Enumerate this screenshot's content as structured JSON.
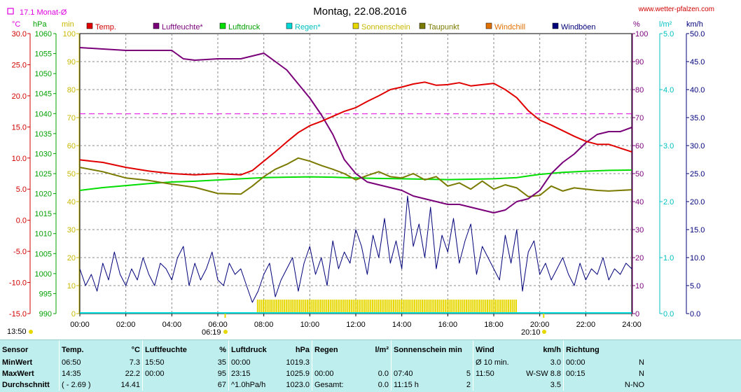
{
  "title": "Montag, 22.08.2016",
  "website": "www.wetter-pfalzen.com",
  "month_avg_label": "17.1 Monat-Ø",
  "colors": {
    "temp": "#e00000",
    "humidity": "#7a007a",
    "pressure": "#00dd00",
    "rain": "#00d8d8",
    "sunshine": "#e6d800",
    "dewpoint": "#7a7a00",
    "windchill": "#e07000",
    "gusts": "#00007a",
    "month_avg": "#e000e0"
  },
  "axis_units": {
    "temp": "°C",
    "pressure": "hPa",
    "sunshine": "min",
    "humidity": "%",
    "rain": "l/m²",
    "wind": "km/h"
  },
  "sun_events": {
    "moonrise_label": "13:50",
    "sunrise_label": "06:19",
    "sunset_label": "20:10"
  },
  "chart_data": {
    "type": "line",
    "title": "Montag, 22.08.2016",
    "x_label": "",
    "x_ticks": [
      "00:00",
      "02:00",
      "04:00",
      "06:00",
      "08:00",
      "10:00",
      "12:00",
      "14:00",
      "16:00",
      "18:00",
      "20:00",
      "22:00",
      "24:00"
    ],
    "x_range": [
      0,
      24
    ],
    "axes": {
      "temp": {
        "range": [
          -15,
          30
        ],
        "ticks": [
          "30.0",
          "25.0",
          "20.0",
          "15.0",
          "10.0",
          "5.0",
          "0.0",
          "-5.0",
          "-10.0",
          "-15.0"
        ]
      },
      "pressure": {
        "range": [
          990,
          1060
        ],
        "ticks": [
          "1060",
          "1055",
          "1050",
          "1045",
          "1040",
          "1035",
          "1030",
          "1025",
          "1020",
          "1015",
          "1010",
          "1005",
          "1000",
          "995",
          "990"
        ]
      },
      "sunshine": {
        "range": [
          0,
          100
        ],
        "ticks": [
          "100",
          "90",
          "80",
          "70",
          "60",
          "50",
          "40",
          "30",
          "20",
          "10",
          "0"
        ]
      },
      "humidity": {
        "range": [
          0,
          100
        ],
        "ticks": [
          "100",
          "90",
          "80",
          "70",
          "60",
          "50",
          "40",
          "30",
          "20",
          "10",
          "0"
        ]
      },
      "rain": {
        "range": [
          0,
          5
        ],
        "ticks": [
          "5.0",
          "4.0",
          "3.0",
          "2.0",
          "1.0",
          "0.0"
        ]
      },
      "wind": {
        "range": [
          0,
          50
        ],
        "ticks": [
          "50.0",
          "45.0",
          "40.0",
          "35.0",
          "30.0",
          "25.0",
          "20.0",
          "15.0",
          "10.0",
          "5.0",
          "0.0"
        ]
      }
    },
    "legend": [
      "Temp.",
      "Luftfeuchte*",
      "Luftdruck",
      "Regen*",
      "Sonnenschein",
      "Taupunkt",
      "Windchill",
      "Windböen"
    ],
    "month_avg_temp": 17.1,
    "series": [
      {
        "name": "Temp.",
        "axis": "temp",
        "x": [
          0,
          1,
          2,
          3,
          4,
          5,
          6,
          6.5,
          7,
          7.5,
          8,
          8.5,
          9,
          9.5,
          10,
          10.5,
          11,
          11.5,
          12,
          12.5,
          13,
          13.5,
          14,
          14.5,
          15,
          15.5,
          16,
          16.5,
          17,
          17.5,
          18,
          18.5,
          19,
          19.5,
          20,
          20.5,
          21,
          21.5,
          22,
          22.5,
          23,
          23.5,
          24
        ],
        "y": [
          9.7,
          9.3,
          8.5,
          7.9,
          7.5,
          7.3,
          7.5,
          7.4,
          7.3,
          8.0,
          9.5,
          11.0,
          12.6,
          14.1,
          15.2,
          15.9,
          16.7,
          17.5,
          18.1,
          19.1,
          20.0,
          21.0,
          21.4,
          21.9,
          22.2,
          21.7,
          21.8,
          22.1,
          21.6,
          21.8,
          22.0,
          21.0,
          19.7,
          17.6,
          16.1,
          15.3,
          14.4,
          13.5,
          12.7,
          12.2,
          12.2,
          11.6,
          11.0
        ]
      },
      {
        "name": "Taupunkt",
        "axis": "temp",
        "x": [
          0,
          1,
          2,
          3,
          4,
          5,
          6,
          7,
          7.5,
          8,
          8.5,
          9,
          9.5,
          10,
          10.5,
          11,
          11.5,
          12,
          12.5,
          13,
          13.5,
          14,
          14.5,
          15,
          15.5,
          16,
          16.5,
          17,
          17.5,
          18,
          18.5,
          19,
          19.5,
          20,
          20.5,
          21,
          21.5,
          22,
          22.5,
          23,
          23.5,
          24
        ],
        "y": [
          8.5,
          7.8,
          6.8,
          6.4,
          5.8,
          5.3,
          4.3,
          4.2,
          5.5,
          7.0,
          8.2,
          9.0,
          10.0,
          9.5,
          8.8,
          8.2,
          7.5,
          6.5,
          7.2,
          7.8,
          7.0,
          6.8,
          7.5,
          6.5,
          7.0,
          5.5,
          6.0,
          5.0,
          6.3,
          5.0,
          5.7,
          5.2,
          3.8,
          4.0,
          5.5,
          4.7,
          5.2,
          5.0,
          4.8,
          4.7,
          4.8,
          4.9
        ]
      },
      {
        "name": "Luftfeuchte*",
        "axis": "humidity",
        "x": [
          0,
          1,
          2,
          3,
          4,
          4.5,
          5,
          6,
          7,
          7.5,
          8,
          8.5,
          9,
          9.5,
          10,
          10.5,
          11,
          11.5,
          12,
          12.5,
          13,
          13.5,
          14,
          14.5,
          15,
          15.5,
          16,
          16.5,
          17,
          17.5,
          18,
          18.5,
          19,
          19.5,
          20,
          20.5,
          21,
          21.5,
          22,
          22.5,
          23,
          23.5,
          24
        ],
        "y": [
          95,
          94.5,
          94,
          94,
          94,
          91,
          90.5,
          91,
          91,
          92,
          93,
          90,
          87,
          82,
          77,
          71,
          64,
          55,
          50,
          47,
          46,
          45,
          44,
          42,
          41,
          40,
          39,
          39,
          38,
          37,
          36,
          37,
          40,
          41,
          44,
          50,
          54,
          57,
          61,
          64,
          65,
          65,
          66.5
        ]
      },
      {
        "name": "Luftdruck",
        "axis": "pressure",
        "x": [
          0,
          1,
          2,
          3,
          4,
          5,
          6,
          7,
          8,
          9,
          10,
          11,
          12,
          13,
          14,
          15,
          16,
          17,
          18,
          19,
          20,
          21,
          22,
          23,
          24
        ],
        "y": [
          1020.8,
          1021.5,
          1022.0,
          1022.5,
          1022.9,
          1023.1,
          1023.4,
          1023.7,
          1024.0,
          1024.1,
          1024.2,
          1024.1,
          1023.9,
          1023.8,
          1023.7,
          1023.6,
          1023.5,
          1023.6,
          1023.7,
          1024.0,
          1024.8,
          1025.3,
          1025.6,
          1025.8,
          1025.9
        ]
      },
      {
        "name": "Windböen",
        "axis": "wind",
        "x": [
          0,
          0.25,
          0.5,
          0.75,
          1,
          1.25,
          1.5,
          1.75,
          2,
          2.25,
          2.5,
          2.75,
          3,
          3.25,
          3.5,
          3.75,
          4,
          4.25,
          4.5,
          4.75,
          5,
          5.25,
          5.5,
          5.75,
          6,
          6.25,
          6.5,
          6.75,
          7,
          7.25,
          7.5,
          7.75,
          8,
          8.25,
          8.5,
          8.75,
          9,
          9.25,
          9.5,
          9.75,
          10,
          10.25,
          10.5,
          10.75,
          11,
          11.25,
          11.5,
          11.75,
          12,
          12.25,
          12.5,
          12.75,
          13,
          13.25,
          13.5,
          13.75,
          14,
          14.25,
          14.5,
          14.75,
          15,
          15.25,
          15.5,
          15.75,
          16,
          16.25,
          16.5,
          16.75,
          17,
          17.25,
          17.5,
          17.75,
          18,
          18.25,
          18.5,
          18.75,
          19,
          19.25,
          19.5,
          19.75,
          20,
          20.25,
          20.5,
          20.75,
          21,
          21.25,
          21.5,
          21.75,
          22,
          22.25,
          22.5,
          22.75,
          23,
          23.25,
          23.5,
          23.75,
          24
        ],
        "y": [
          8,
          5,
          7,
          4,
          9,
          6,
          11,
          7,
          5,
          8,
          6,
          10,
          7,
          5,
          9,
          8,
          6,
          10,
          12,
          5,
          9,
          6,
          8,
          11,
          6,
          5,
          9,
          7,
          8,
          5,
          2,
          4,
          7,
          9,
          3,
          6,
          8,
          10,
          4,
          9,
          12,
          7,
          10,
          5,
          13,
          8,
          11,
          9,
          15,
          12,
          7,
          14,
          10,
          17,
          9,
          13,
          8,
          21,
          12,
          16,
          10,
          19,
          8,
          14,
          11,
          17,
          9,
          13,
          16,
          7,
          12,
          10,
          8,
          6,
          14,
          9,
          15,
          4,
          11,
          13,
          7,
          9,
          6,
          8,
          10,
          7,
          5,
          9,
          6,
          8,
          7,
          10,
          6,
          8,
          7,
          9,
          8
        ]
      }
    ],
    "sunshine_periods": [
      [
        7.7,
        19.0
      ]
    ],
    "rain_total": 0.0
  },
  "stats": {
    "headers": {
      "sensor": "Sensor",
      "temp": "Temp.",
      "temp_unit": "°C",
      "hum": "Luftfeuchte",
      "hum_unit": "%",
      "press": "Luftdruck",
      "press_unit": "hPa",
      "rain": "Regen",
      "rain_unit": "l/m²",
      "sun": "Sonnenschein min",
      "wind": "Wind",
      "wind_unit": "km/h",
      "dir": "Richtung"
    },
    "min": {
      "label": "MinWert",
      "temp_time": "06:50",
      "temp": "7.3",
      "hum_time": "15:50",
      "hum": "35",
      "press_time": "00:00",
      "press": "1019.3",
      "wind_label": "Ø 10 min.",
      "wind": "3.0",
      "dir_time": "00:00",
      "dir": "N"
    },
    "max": {
      "label": "MaxWert",
      "temp_time": "14:35",
      "temp": "22.2",
      "hum_time": "00:00",
      "hum": "95",
      "press_time": "23:15",
      "press": "1025.9",
      "rain_time": "00:00",
      "rain": "0.0",
      "sun_time": "07:40",
      "sun": "5",
      "wind_time": "11:50",
      "wind_dir": "W-SW",
      "wind": "8.8",
      "dir_time": "00:15",
      "dir": "N"
    },
    "avg": {
      "label": "Durchschnitt",
      "temp_range": "( - 2.69 )",
      "temp": "14.41",
      "hum": "67",
      "press_trend": "^1.0hPa/h",
      "press": "1023.0",
      "rain_label": "Gesamt:",
      "rain": "0.0",
      "sun_time": "11:15 h",
      "sun": "2",
      "wind": "3.5",
      "dir": "N-NO"
    }
  }
}
